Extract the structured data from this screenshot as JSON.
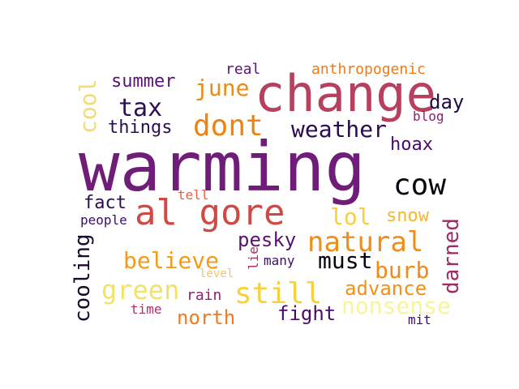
{
  "words": [
    {
      "text": "warming",
      "color": "#6f1d78"
    },
    {
      "text": "change",
      "color": "#b7405e"
    },
    {
      "text": "al gore",
      "color": "#cf4a44"
    },
    {
      "text": "cow",
      "color": "#06060f"
    },
    {
      "text": "dont",
      "color": "#f0820f"
    },
    {
      "text": "tax",
      "color": "#2d0f55"
    },
    {
      "text": "weather",
      "color": "#2a0c55"
    },
    {
      "text": "june",
      "color": "#f08a12"
    },
    {
      "text": "things",
      "color": "#2b0f54"
    },
    {
      "text": "summer",
      "color": "#5a127a"
    },
    {
      "text": "cool",
      "color": "#f2dc72"
    },
    {
      "text": "real",
      "color": "#5b1279"
    },
    {
      "text": "anthropogenic",
      "color": "#f07a1a"
    },
    {
      "text": "day",
      "color": "#1e0c40"
    },
    {
      "text": "blog",
      "color": "#8c1f74"
    },
    {
      "text": "hoax",
      "color": "#4a0c6b"
    },
    {
      "text": "fact",
      "color": "#2a0c55"
    },
    {
      "text": "tell",
      "color": "#e3623b"
    },
    {
      "text": "people",
      "color": "#3b0f6b"
    },
    {
      "text": "lol",
      "color": "#f6cf3e"
    },
    {
      "text": "snow",
      "color": "#f6b72a"
    },
    {
      "text": "natural",
      "color": "#f28c18"
    },
    {
      "text": "pesky",
      "color": "#5c126e"
    },
    {
      "text": "darned",
      "color": "#9c2b66"
    },
    {
      "text": "believe",
      "color": "#f59b17"
    },
    {
      "text": "must",
      "color": "#050510"
    },
    {
      "text": "burb",
      "color": "#f28a14"
    },
    {
      "text": "cooling",
      "color": "#1a0a30"
    },
    {
      "text": "green",
      "color": "#f2e269"
    },
    {
      "text": "still",
      "color": "#f6d13a"
    },
    {
      "text": "lie",
      "color": "#a83060"
    },
    {
      "text": "many",
      "color": "#3e0f6a"
    },
    {
      "text": "level",
      "color": "#f7c35a"
    },
    {
      "text": "advance",
      "color": "#f39016"
    },
    {
      "text": "nonsense",
      "color": "#f7f59a"
    },
    {
      "text": "rain",
      "color": "#8a2270"
    },
    {
      "text": "time",
      "color": "#b12f6a"
    },
    {
      "text": "north",
      "color": "#f07a22"
    },
    {
      "text": "fight",
      "color": "#4a0c6b"
    },
    {
      "text": "mit",
      "color": "#3f0d6b"
    }
  ]
}
